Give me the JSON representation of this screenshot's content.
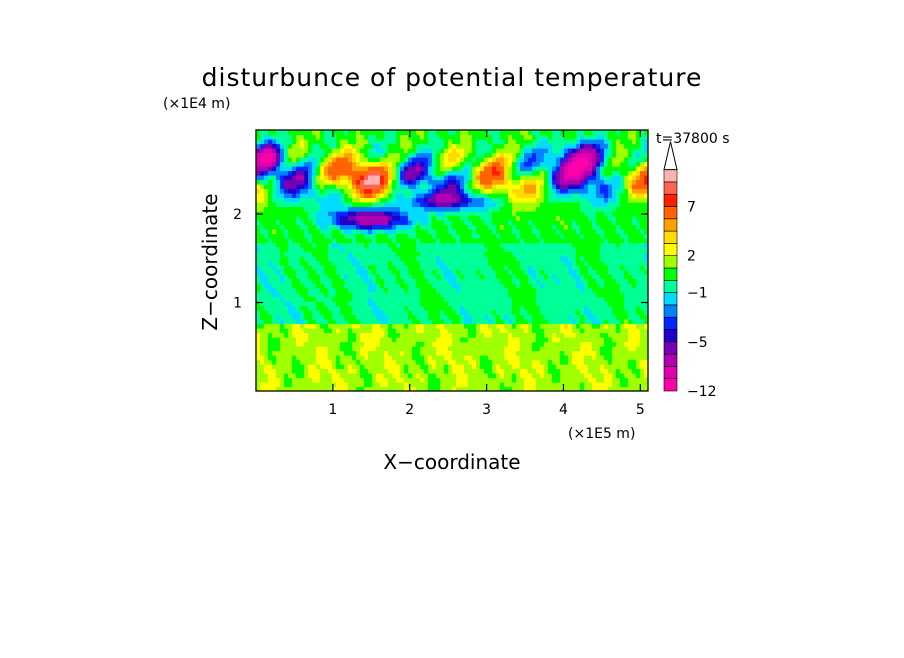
{
  "chart_data": {
    "type": "heatmap",
    "title": "disturbunce of potential temperature",
    "xlabel": "X−coordinate",
    "ylabel": "Z−coordinate",
    "x_unit": "(×1E5 m)",
    "y_unit": "(×1E4 m)",
    "time_label": "t=37800 s",
    "xlim": [
      0,
      5.1
    ],
    "ylim": [
      0,
      2.95
    ],
    "x_ticks": [
      1,
      2,
      3,
      4,
      5
    ],
    "y_ticks": [
      1,
      2
    ],
    "colorbar": {
      "levels": [
        -12,
        -10,
        -8,
        -6,
        -5,
        -4,
        -3,
        -2,
        -1,
        0,
        1,
        2,
        3,
        4,
        5,
        7,
        8,
        9
      ],
      "colors": [
        "#ff00aa",
        "#e000b0",
        "#b000b0",
        "#7800b4",
        "#1e00c8",
        "#0028ff",
        "#0082ff",
        "#00dcff",
        "#00ff96",
        "#00ff00",
        "#a0ff00",
        "#ffff00",
        "#ffdc00",
        "#ffa000",
        "#ff6400",
        "#ff1e00",
        "#ff6450",
        "#ffb4b4"
      ],
      "labels": [
        "−12",
        "−5",
        "−1",
        "2",
        "7"
      ],
      "label_levels": [
        -12,
        -5,
        -1,
        2,
        7
      ],
      "extend": "max"
    }
  }
}
